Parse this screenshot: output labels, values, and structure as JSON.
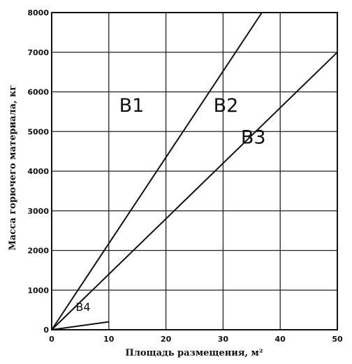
{
  "chart_data": {
    "type": "line",
    "title": "",
    "xlabel": "Площадь размещения, м²",
    "ylabel": "Масса горючего материала, кг",
    "xlim": [
      0,
      50
    ],
    "ylim": [
      0,
      8000
    ],
    "xticks": [
      0,
      10,
      20,
      30,
      40,
      50
    ],
    "yticks": [
      0,
      1000,
      2000,
      3000,
      4000,
      5000,
      6000,
      7000,
      8000
    ],
    "grid": true,
    "series": [
      {
        "x": [
          0,
          36.8
        ],
        "y": [
          0,
          8000
        ],
        "color": "#111111"
      },
      {
        "x": [
          0,
          50
        ],
        "y": [
          0,
          7000
        ],
        "color": "#111111"
      },
      {
        "x": [
          0,
          10
        ],
        "y": [
          0,
          200
        ],
        "color": "#111111"
      }
    ],
    "annotations": [
      {
        "text": "B1",
        "x": 14,
        "y": 5500,
        "kind": "region"
      },
      {
        "text": "B2",
        "x": 30.5,
        "y": 5500,
        "kind": "region"
      },
      {
        "text": "B3",
        "x": 35.3,
        "y": 4700,
        "kind": "region"
      },
      {
        "text": "B4",
        "x": 5.5,
        "y": 480,
        "kind": "region-small"
      }
    ]
  }
}
